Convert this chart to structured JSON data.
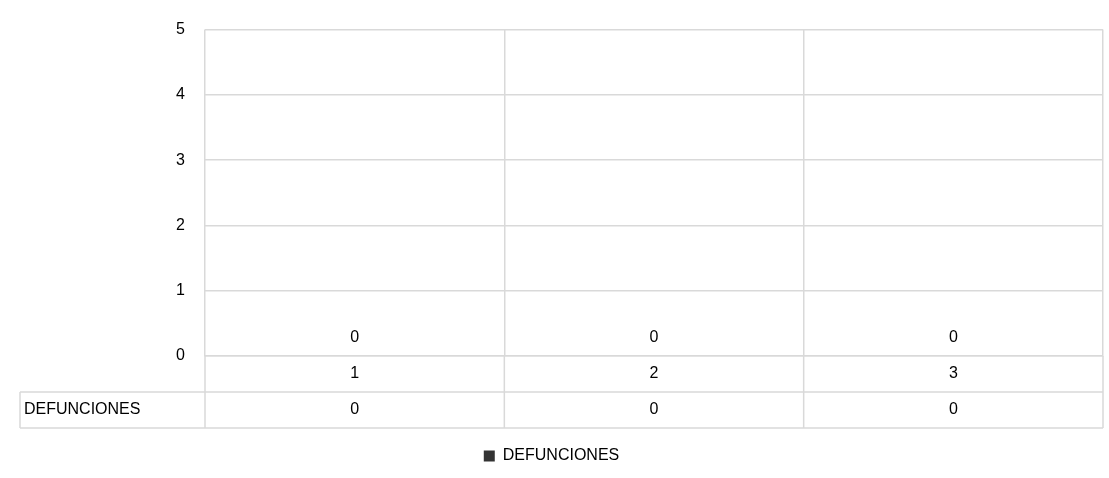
{
  "chart_data": {
    "type": "bar",
    "categories": [
      "1",
      "2",
      "3"
    ],
    "series": [
      {
        "name": "DEFUNCIONES",
        "color": "#333333",
        "values": [
          0,
          0,
          0
        ],
        "value_labels": [
          "0",
          "0",
          "0"
        ]
      }
    ],
    "annotations": [
      "0",
      "0",
      "0"
    ],
    "ylim": [
      0,
      5
    ],
    "yticks": [
      0,
      1,
      2,
      3,
      4,
      5
    ],
    "grid": true,
    "legend": "bottom"
  }
}
